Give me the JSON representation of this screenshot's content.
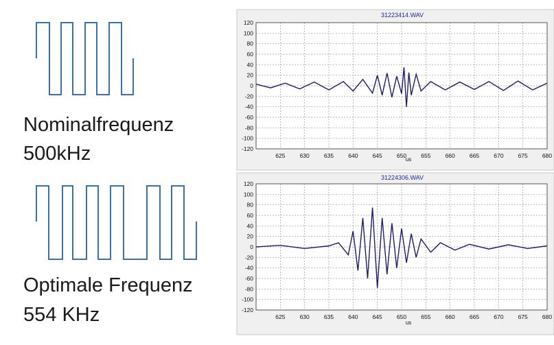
{
  "labels": {
    "nominal_title": "Nominalfrequenz",
    "nominal_value": "500kHz",
    "optimal_title": "Optimale Frequenz",
    "optimal_value": "554 KHz"
  },
  "colors": {
    "pulse": "#3a6fb0",
    "signal": "#1c1c6e",
    "grid": "#9a9a9a",
    "panel_background": "#f0f0f0",
    "plot_background": "#ffffff",
    "title": "#1f2a9a"
  },
  "chart_data": [
    {
      "type": "line",
      "title": "31223414.WAV",
      "xlabel": "us",
      "ylabel": "",
      "xlim": [
        620,
        680
      ],
      "ylim": [
        -120,
        120
      ],
      "xticks": [
        625,
        630,
        635,
        640,
        645,
        650,
        655,
        660,
        665,
        670,
        675,
        680
      ],
      "yticks": [
        120,
        100,
        80,
        60,
        40,
        20,
        0,
        -20,
        -40,
        -60,
        -80,
        -100,
        -120
      ],
      "grid": true,
      "series": [
        {
          "x": [
            620,
            623,
            626,
            629,
            632,
            635,
            638,
            640,
            642,
            644,
            645,
            646,
            647,
            648,
            649,
            650,
            650.5,
            651,
            651.5,
            652,
            653,
            654,
            656,
            659,
            662,
            665,
            668,
            671,
            674,
            677,
            680
          ],
          "y": [
            3,
            -4,
            5,
            -6,
            7,
            -8,
            8,
            -10,
            12,
            -14,
            20,
            -18,
            24,
            -22,
            18,
            -15,
            35,
            -40,
            25,
            -18,
            22,
            -10,
            8,
            -8,
            7,
            -7,
            8,
            -9,
            9,
            -8,
            5
          ]
        }
      ]
    },
    {
      "type": "line",
      "title": "31224306.WAV",
      "xlabel": "us",
      "ylabel": "",
      "xlim": [
        620,
        680
      ],
      "ylim": [
        -120,
        120
      ],
      "xticks": [
        625,
        630,
        635,
        640,
        645,
        650,
        655,
        660,
        665,
        670,
        675,
        680
      ],
      "yticks": [
        120,
        100,
        80,
        60,
        40,
        20,
        0,
        -20,
        -40,
        -60,
        -80,
        -100,
        -120
      ],
      "grid": true,
      "series": [
        {
          "x": [
            620,
            625,
            630,
            635,
            637,
            639,
            640,
            641,
            642,
            643,
            644,
            645,
            646,
            647,
            648,
            649,
            650,
            651,
            652,
            653,
            654,
            656,
            658,
            661,
            664,
            668,
            672,
            676,
            680
          ],
          "y": [
            0,
            3,
            -3,
            2,
            8,
            -15,
            30,
            -45,
            55,
            -60,
            75,
            -78,
            55,
            -52,
            45,
            -40,
            35,
            -30,
            25,
            -20,
            15,
            -10,
            8,
            -6,
            5,
            -4,
            4,
            -3,
            2
          ]
        }
      ]
    }
  ]
}
